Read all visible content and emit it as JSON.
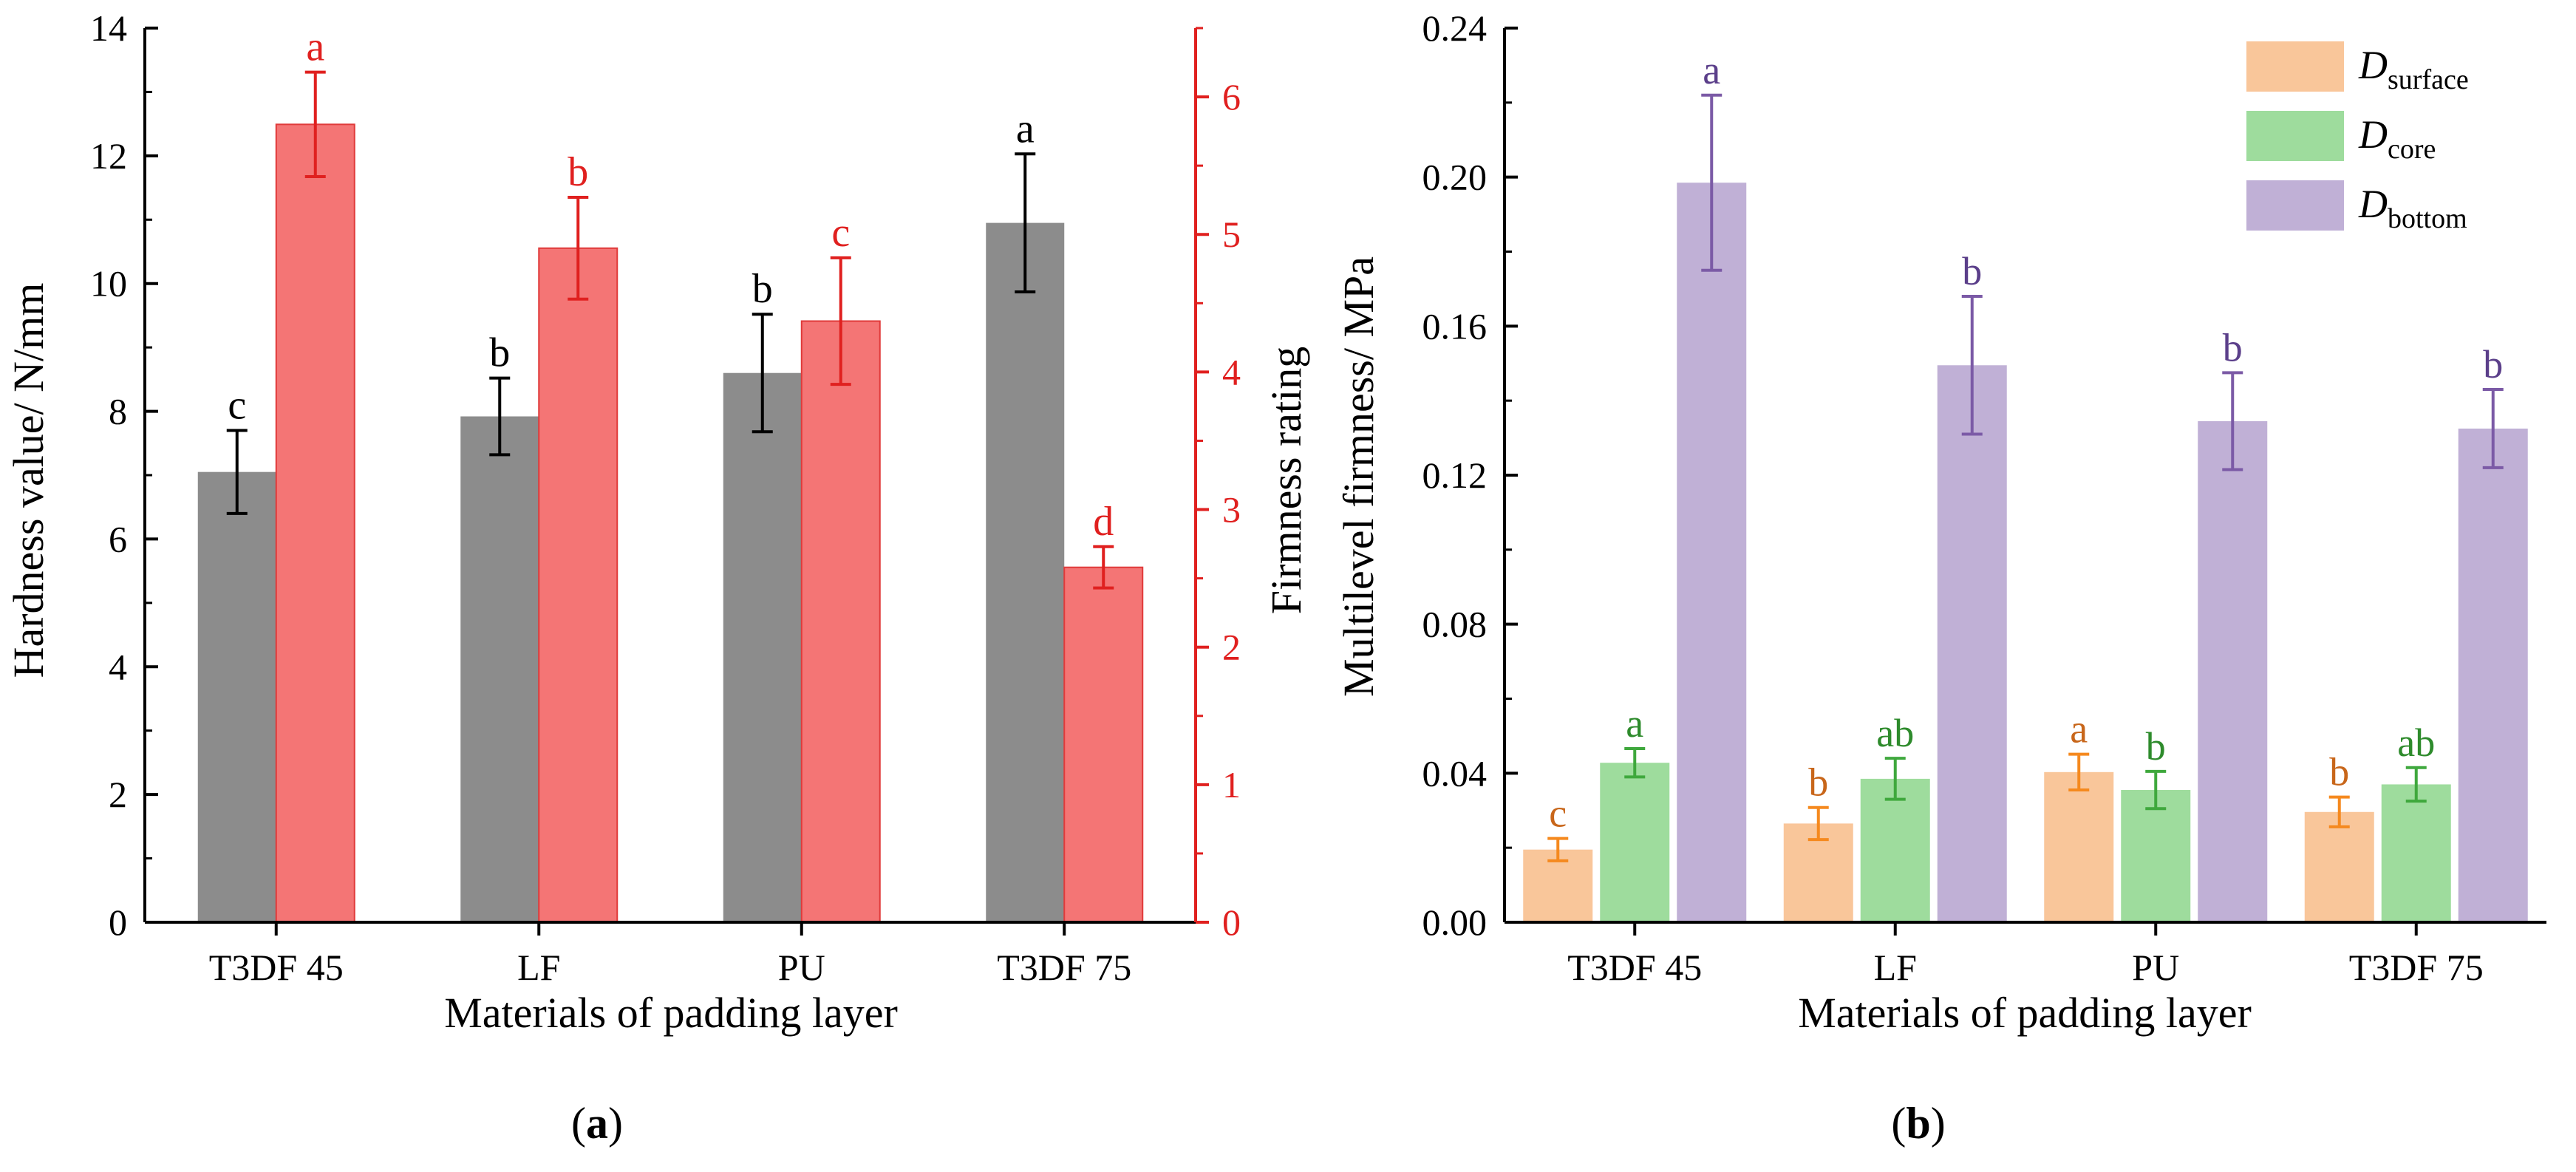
{
  "chart_data": [
    {
      "type": "bar",
      "panel_label": "(a)",
      "panel_letter": "a",
      "xlabel": "Materials of padding layer",
      "ylabel_left": "Hardness value/ N/mm",
      "ylabel_right": "Firmness rating",
      "categories": [
        "T3DF 45",
        "LF",
        "PU",
        "T3DF 75"
      ],
      "ylim_left": [
        0,
        14
      ],
      "yticks_left": [
        "0",
        "2",
        "4",
        "6",
        "8",
        "10",
        "12",
        "14"
      ],
      "ylim_right": [
        0,
        6.5
      ],
      "yticks_right": [
        "0",
        "1",
        "2",
        "3",
        "4",
        "5",
        "6"
      ],
      "series": [
        {
          "name": "Hardness value",
          "axis": "left",
          "color": "#8c8c8c",
          "label_color": "#000000",
          "values": [
            7.05,
            7.92,
            8.6,
            10.95
          ],
          "errors": [
            0.65,
            0.6,
            0.92,
            1.08
          ],
          "letters": [
            "c",
            "b",
            "b",
            "a"
          ]
        },
        {
          "name": "Firmness rating",
          "axis": "right",
          "color": "#f47575",
          "label_color": "#e0201f",
          "values": [
            5.8,
            4.9,
            4.37,
            2.58
          ],
          "errors": [
            0.38,
            0.37,
            0.46,
            0.15
          ],
          "letters": [
            "a",
            "b",
            "c",
            "d"
          ]
        }
      ]
    },
    {
      "type": "bar",
      "panel_label": "(b)",
      "panel_letter": "b",
      "xlabel": "Materials of padding layer",
      "ylabel": "Multilevel firmness/ MPa",
      "categories": [
        "T3DF 45",
        "LF",
        "PU",
        "T3DF 75"
      ],
      "ylim": [
        0,
        0.24
      ],
      "yticks": [
        "0.00",
        "0.04",
        "0.08",
        "0.12",
        "0.16",
        "0.20",
        "0.24"
      ],
      "legend_position": "top-right",
      "series": [
        {
          "name": "D",
          "subscript": "surface",
          "color": "#f9c69a",
          "error_color": "#f5891e",
          "label_color": "#c8661a",
          "values": [
            0.0195,
            0.0265,
            0.0403,
            0.0296
          ],
          "errors": [
            0.003,
            0.0043,
            0.0048,
            0.004
          ],
          "letters": [
            "c",
            "b",
            "a",
            "b"
          ]
        },
        {
          "name": "D",
          "subscript": "core",
          "color": "#9edc9d",
          "error_color": "#3fa83d",
          "label_color": "#2e8b2c",
          "values": [
            0.0428,
            0.0385,
            0.0355,
            0.037
          ],
          "errors": [
            0.0038,
            0.0055,
            0.005,
            0.0045
          ],
          "letters": [
            "a",
            "ab",
            "b",
            "ab"
          ]
        },
        {
          "name": "D",
          "subscript": "bottom",
          "color": "#c0b0d6",
          "error_color": "#7b5aa6",
          "label_color": "#5b3f8a",
          "values": [
            0.1985,
            0.1495,
            0.1345,
            0.1325
          ],
          "errors": [
            0.0235,
            0.0185,
            0.013,
            0.0105
          ],
          "letters": [
            "a",
            "b",
            "b",
            "b"
          ]
        }
      ]
    }
  ]
}
